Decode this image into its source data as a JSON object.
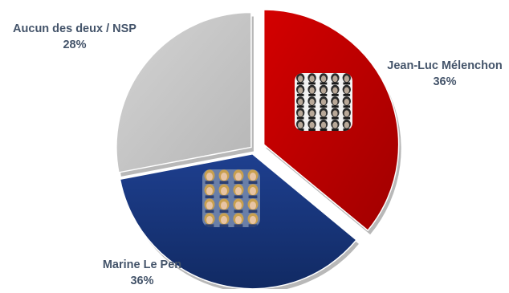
{
  "chart_data": {
    "type": "pie",
    "title": "",
    "categories": [
      "Jean-Luc Mélenchon",
      "Marine Le Pen",
      "Aucun des deux / NSP"
    ],
    "values": [
      36,
      36,
      28
    ],
    "value_labels": [
      "36%",
      "36%",
      "28%"
    ],
    "colors": [
      "#c00000",
      "#1f3c88",
      "#bfbfbf"
    ],
    "legend": "none",
    "thumbnails": [
      "portrait-icon",
      "portrait-icon",
      ""
    ]
  }
}
